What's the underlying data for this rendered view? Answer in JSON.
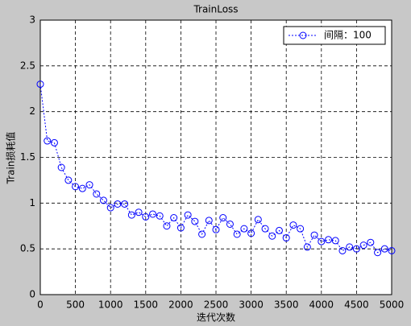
{
  "chart_data": {
    "type": "line",
    "title": "TrainLoss",
    "x_label": "迭代次数",
    "y_label": "Train损耗值",
    "x": [
      0,
      100,
      200,
      300,
      400,
      500,
      600,
      700,
      800,
      900,
      1000,
      1100,
      1200,
      1300,
      1400,
      1500,
      1600,
      1700,
      1800,
      1900,
      2000,
      2100,
      2200,
      2300,
      2400,
      2500,
      2600,
      2700,
      2800,
      2900,
      3000,
      3100,
      3200,
      3300,
      3400,
      3500,
      3600,
      3700,
      3800,
      3900,
      4000,
      4100,
      4200,
      4300,
      4400,
      4500,
      4600,
      4700,
      4800,
      4900,
      5000
    ],
    "series": [
      {
        "name": "间隔：100",
        "color": "#0000ff",
        "values": [
          2.3,
          1.68,
          1.66,
          1.39,
          1.25,
          1.18,
          1.16,
          1.2,
          1.1,
          1.03,
          0.95,
          0.99,
          0.99,
          0.87,
          0.9,
          0.85,
          0.88,
          0.86,
          0.75,
          0.84,
          0.73,
          0.87,
          0.8,
          0.66,
          0.81,
          0.71,
          0.84,
          0.77,
          0.66,
          0.72,
          0.67,
          0.82,
          0.72,
          0.64,
          0.7,
          0.62,
          0.76,
          0.72,
          0.52,
          0.65,
          0.58,
          0.6,
          0.59,
          0.48,
          0.52,
          0.5,
          0.54,
          0.57,
          0.46,
          0.5,
          0.48
        ]
      }
    ],
    "xlim": [
      0,
      5000
    ],
    "xticks": [
      0,
      500,
      1000,
      1500,
      2000,
      2500,
      3000,
      3500,
      4000,
      4500,
      5000
    ],
    "ylim": [
      0,
      3
    ],
    "yticks": [
      0,
      0.5,
      1,
      1.5,
      2,
      2.5,
      3
    ],
    "grid": true,
    "legend": "northeast"
  }
}
